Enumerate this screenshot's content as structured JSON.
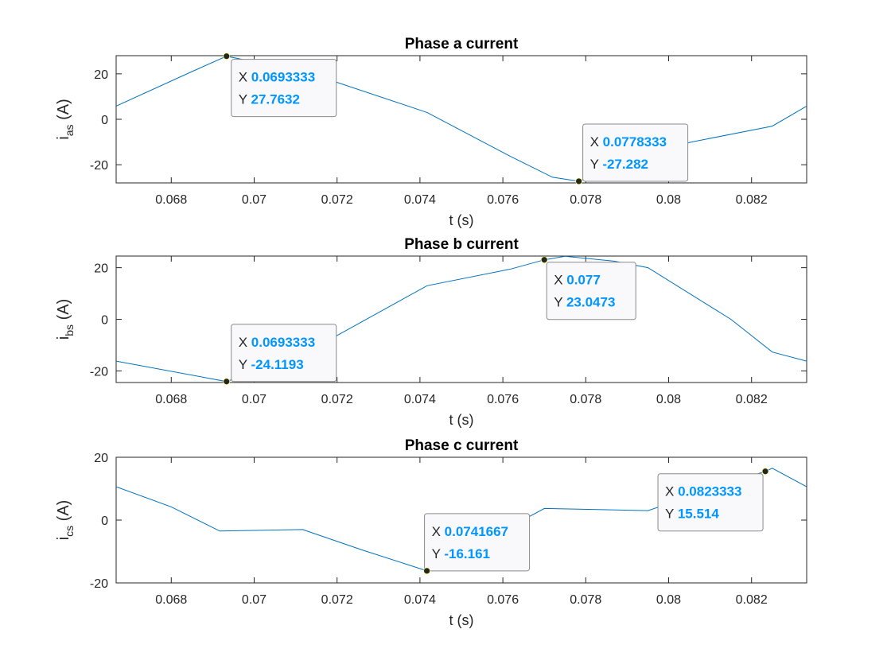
{
  "chart_data": [
    {
      "type": "line",
      "title": "Phase a current",
      "xlabel": "t (s)",
      "ylabel_main": "i",
      "ylabel_sub": "as",
      "ylabel_unit": " (A)",
      "xlim": [
        0.06667,
        0.08333
      ],
      "ylim": [
        -28,
        28
      ],
      "xticks": [
        0.068,
        0.07,
        0.072,
        0.074,
        0.076,
        0.078,
        0.08,
        0.082
      ],
      "xtick_labels": [
        "0.068",
        "0.07",
        "0.072",
        "0.074",
        "0.076",
        "0.078",
        "0.08",
        "0.082"
      ],
      "yticks": [
        -20,
        0,
        20
      ],
      "ytick_labels": [
        "-20",
        "0",
        "20"
      ],
      "series": [
        {
          "color": "#0072bd",
          "x": [
            0.06667,
            0.0685,
            0.069333,
            0.0713,
            0.07417,
            0.0762,
            0.0772,
            0.07783,
            0.07917,
            0.0805,
            0.0825,
            0.08333
          ],
          "y": [
            5.8,
            21,
            27.7632,
            20.5,
            3.0,
            -16.5,
            -25.5,
            -27.282,
            -18.5,
            -10.2,
            -3.0,
            5.8
          ]
        }
      ],
      "datatips": [
        {
          "x": 0.069333,
          "y": 27.7632,
          "x_label": "X",
          "y_label": "Y",
          "x_text": "0.0693333",
          "y_text": "27.7632"
        },
        {
          "x": 0.077833,
          "y": -27.282,
          "x_label": "X",
          "y_label": "Y",
          "x_text": "0.0778333",
          "y_text": "-27.282"
        }
      ]
    },
    {
      "type": "line",
      "title": "Phase b current",
      "xlabel": "t (s)",
      "ylabel_main": "i",
      "ylabel_sub": "bs",
      "ylabel_unit": " (A)",
      "xlim": [
        0.06667,
        0.08333
      ],
      "ylim": [
        -24.5,
        24.5
      ],
      "xticks": [
        0.068,
        0.07,
        0.072,
        0.074,
        0.076,
        0.078,
        0.08,
        0.082
      ],
      "xtick_labels": [
        "0.068",
        "0.07",
        "0.072",
        "0.074",
        "0.076",
        "0.078",
        "0.08",
        "0.082"
      ],
      "yticks": [
        -20,
        0,
        20
      ],
      "ytick_labels": [
        "-20",
        "0",
        "20"
      ],
      "series": [
        {
          "color": "#0072bd",
          "x": [
            0.06667,
            0.069333,
            0.0713,
            0.07417,
            0.0762,
            0.077,
            0.0775,
            0.0787,
            0.0795,
            0.0815,
            0.0825,
            0.08333
          ],
          "y": [
            -16.2,
            -24.1193,
            -12.5,
            13.0,
            19.5,
            23.0473,
            24.4,
            22.5,
            20.0,
            0.0,
            -12.7,
            -16.2
          ]
        }
      ],
      "datatips": [
        {
          "x": 0.069333,
          "y": -24.1193,
          "x_label": "X",
          "y_label": "Y",
          "x_text": "0.0693333",
          "y_text": "-24.1193"
        },
        {
          "x": 0.077,
          "y": 23.0473,
          "x_label": "X",
          "y_label": "Y",
          "x_text": "0.077",
          "y_text": "23.0473"
        }
      ]
    },
    {
      "type": "line",
      "title": "Phase c current",
      "xlabel": "t (s)",
      "ylabel_main": "i",
      "ylabel_sub": "cs",
      "ylabel_unit": " (A)",
      "xlim": [
        0.06667,
        0.08333
      ],
      "ylim": [
        -20,
        20
      ],
      "xticks": [
        0.068,
        0.07,
        0.072,
        0.074,
        0.076,
        0.078,
        0.08,
        0.082
      ],
      "xtick_labels": [
        "0.068",
        "0.07",
        "0.072",
        "0.074",
        "0.076",
        "0.078",
        "0.08",
        "0.082"
      ],
      "yticks": [
        -20,
        0,
        20
      ],
      "ytick_labels": [
        "-20",
        "0",
        "20"
      ],
      "series": [
        {
          "color": "#0072bd",
          "x": [
            0.06667,
            0.068,
            0.06917,
            0.07117,
            0.0726,
            0.074167,
            0.0762,
            0.077,
            0.0795,
            0.08233,
            0.0825,
            0.08333
          ],
          "y": [
            10.6,
            4.2,
            -3.5,
            -3.0,
            -9.5,
            -16.161,
            -2.0,
            3.7,
            3.0,
            15.514,
            16.5,
            10.6
          ]
        }
      ],
      "datatips": [
        {
          "x": 0.074167,
          "y": -16.161,
          "x_label": "X",
          "y_label": "Y",
          "x_text": "0.0741667",
          "y_text": "-16.161"
        },
        {
          "x": 0.082333,
          "y": 15.514,
          "x_label": "X",
          "y_label": "Y",
          "x_text": "0.0823333",
          "y_text": "15.514"
        }
      ]
    }
  ]
}
